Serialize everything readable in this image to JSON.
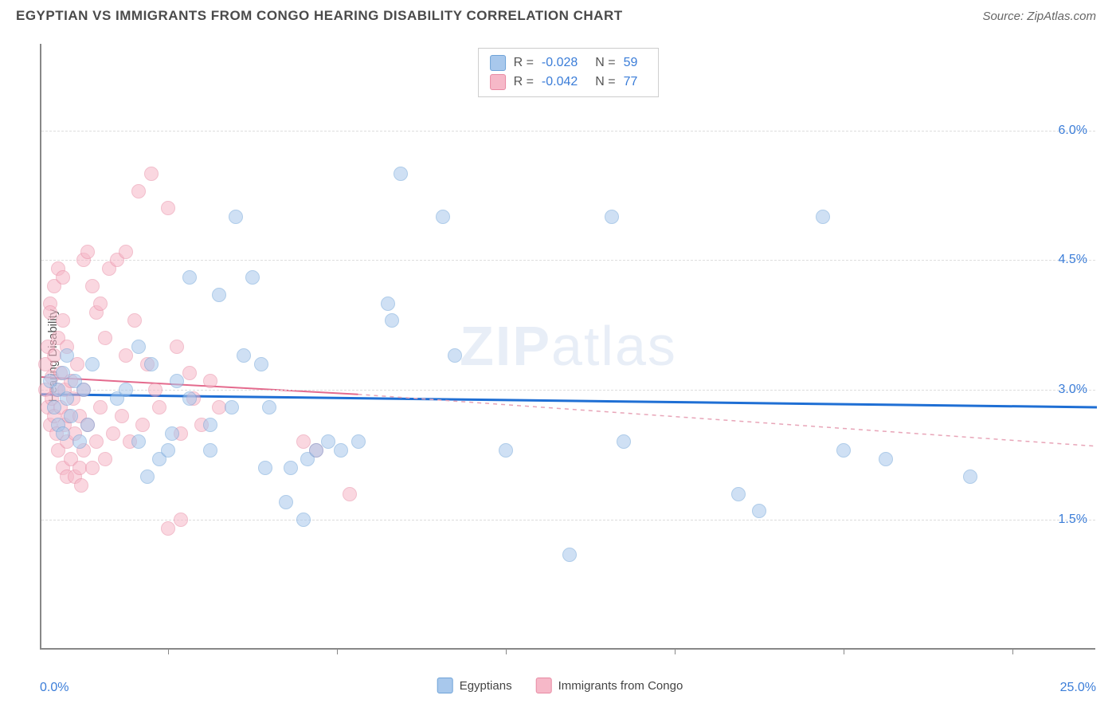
{
  "header": {
    "title": "EGYPTIAN VS IMMIGRANTS FROM CONGO HEARING DISABILITY CORRELATION CHART",
    "source": "Source: ZipAtlas.com"
  },
  "watermark": {
    "part1": "ZIP",
    "part2": "atlas"
  },
  "chart": {
    "type": "scatter",
    "y_axis_title": "Hearing Disability",
    "background_color": "#ffffff",
    "grid_color": "#dddddd",
    "axis_color": "#888888",
    "xlim": [
      0.0,
      25.0
    ],
    "ylim": [
      0.0,
      7.0
    ],
    "x_labels": {
      "min": "0.0%",
      "max": "25.0%"
    },
    "y_ticks": [
      {
        "value": 1.5,
        "label": "1.5%"
      },
      {
        "value": 3.0,
        "label": "3.0%"
      },
      {
        "value": 4.5,
        "label": "4.5%"
      },
      {
        "value": 6.0,
        "label": "6.0%"
      }
    ],
    "x_tick_positions": [
      3.0,
      7.0,
      11.0,
      15.0,
      19.0,
      23.0
    ],
    "series": [
      {
        "name": "Egyptians",
        "fill_color": "#a8c8ec",
        "stroke_color": "#6fa3d8",
        "fill_opacity": 0.55,
        "marker_radius": 9,
        "trend": {
          "color": "#1f6fd4",
          "width": 3,
          "x1": 0.0,
          "y1": 2.95,
          "x2": 25.0,
          "y2": 2.8,
          "dash": "none",
          "extrapolate_dash": false
        },
        "stats": {
          "R": "-0.028",
          "N": "59"
        },
        "points": [
          [
            0.2,
            3.1
          ],
          [
            0.3,
            2.8
          ],
          [
            0.4,
            3.0
          ],
          [
            0.4,
            2.6
          ],
          [
            0.5,
            3.2
          ],
          [
            0.5,
            2.5
          ],
          [
            0.6,
            2.9
          ],
          [
            0.6,
            3.4
          ],
          [
            0.7,
            2.7
          ],
          [
            0.8,
            3.1
          ],
          [
            0.9,
            2.4
          ],
          [
            1.0,
            3.0
          ],
          [
            1.1,
            2.6
          ],
          [
            1.2,
            3.3
          ],
          [
            1.8,
            2.9
          ],
          [
            2.0,
            3.0
          ],
          [
            2.3,
            3.5
          ],
          [
            2.3,
            2.4
          ],
          [
            2.5,
            2.0
          ],
          [
            2.6,
            3.3
          ],
          [
            2.8,
            2.2
          ],
          [
            3.0,
            2.3
          ],
          [
            3.1,
            2.5
          ],
          [
            3.2,
            3.1
          ],
          [
            3.5,
            2.9
          ],
          [
            3.5,
            4.3
          ],
          [
            4.0,
            2.3
          ],
          [
            4.0,
            2.6
          ],
          [
            4.2,
            4.1
          ],
          [
            4.5,
            2.8
          ],
          [
            4.6,
            5.0
          ],
          [
            4.8,
            3.4
          ],
          [
            5.0,
            4.3
          ],
          [
            5.2,
            3.3
          ],
          [
            5.3,
            2.1
          ],
          [
            5.4,
            2.8
          ],
          [
            5.8,
            1.7
          ],
          [
            5.9,
            2.1
          ],
          [
            6.2,
            1.5
          ],
          [
            6.3,
            2.2
          ],
          [
            6.5,
            2.3
          ],
          [
            6.8,
            2.4
          ],
          [
            7.1,
            2.3
          ],
          [
            7.5,
            2.4
          ],
          [
            8.2,
            4.0
          ],
          [
            8.3,
            3.8
          ],
          [
            8.5,
            5.5
          ],
          [
            9.5,
            5.0
          ],
          [
            9.8,
            3.4
          ],
          [
            11.0,
            2.3
          ],
          [
            12.5,
            1.1
          ],
          [
            13.5,
            5.0
          ],
          [
            13.8,
            2.4
          ],
          [
            16.5,
            1.8
          ],
          [
            17.0,
            1.6
          ],
          [
            18.5,
            5.0
          ],
          [
            19.0,
            2.3
          ],
          [
            20.0,
            2.2
          ],
          [
            22.0,
            2.0
          ]
        ]
      },
      {
        "name": "Immigrants from Congo",
        "fill_color": "#f6b8c8",
        "stroke_color": "#e88aa3",
        "fill_opacity": 0.55,
        "marker_radius": 9,
        "trend": {
          "color": "#e46a8d",
          "width": 2,
          "x1": 0.0,
          "y1": 3.15,
          "x2": 7.5,
          "y2": 2.95,
          "dash": "none",
          "extrapolate_dash": true,
          "ext_x2": 25.0,
          "ext_y2": 2.35,
          "ext_color": "#e8a5b8"
        },
        "stats": {
          "R": "-0.042",
          "N": "77"
        },
        "points": [
          [
            0.1,
            3.0
          ],
          [
            0.1,
            3.3
          ],
          [
            0.15,
            2.8
          ],
          [
            0.15,
            3.5
          ],
          [
            0.2,
            2.6
          ],
          [
            0.2,
            4.0
          ],
          [
            0.2,
            3.9
          ],
          [
            0.25,
            2.9
          ],
          [
            0.25,
            3.15
          ],
          [
            0.3,
            3.4
          ],
          [
            0.3,
            2.7
          ],
          [
            0.3,
            4.2
          ],
          [
            0.35,
            3.0
          ],
          [
            0.35,
            2.5
          ],
          [
            0.4,
            3.6
          ],
          [
            0.4,
            2.3
          ],
          [
            0.4,
            4.4
          ],
          [
            0.45,
            2.8
          ],
          [
            0.45,
            3.2
          ],
          [
            0.5,
            2.1
          ],
          [
            0.5,
            3.8
          ],
          [
            0.5,
            4.3
          ],
          [
            0.55,
            2.6
          ],
          [
            0.55,
            3.0
          ],
          [
            0.6,
            2.0
          ],
          [
            0.6,
            2.4
          ],
          [
            0.6,
            3.5
          ],
          [
            0.65,
            2.7
          ],
          [
            0.7,
            2.2
          ],
          [
            0.7,
            3.1
          ],
          [
            0.75,
            2.9
          ],
          [
            0.8,
            2.0
          ],
          [
            0.8,
            2.5
          ],
          [
            0.85,
            3.3
          ],
          [
            0.9,
            2.1
          ],
          [
            0.9,
            2.7
          ],
          [
            0.95,
            1.9
          ],
          [
            1.0,
            2.3
          ],
          [
            1.0,
            3.0
          ],
          [
            1.0,
            4.5
          ],
          [
            1.1,
            2.6
          ],
          [
            1.1,
            4.6
          ],
          [
            1.2,
            2.1
          ],
          [
            1.2,
            4.2
          ],
          [
            1.3,
            2.4
          ],
          [
            1.3,
            3.9
          ],
          [
            1.4,
            2.8
          ],
          [
            1.4,
            4.0
          ],
          [
            1.5,
            2.2
          ],
          [
            1.5,
            3.6
          ],
          [
            1.6,
            4.4
          ],
          [
            1.7,
            2.5
          ],
          [
            1.8,
            4.5
          ],
          [
            1.9,
            2.7
          ],
          [
            2.0,
            3.4
          ],
          [
            2.0,
            4.6
          ],
          [
            2.1,
            2.4
          ],
          [
            2.2,
            3.8
          ],
          [
            2.3,
            5.3
          ],
          [
            2.4,
            2.6
          ],
          [
            2.5,
            3.3
          ],
          [
            2.6,
            5.5
          ],
          [
            2.7,
            3.0
          ],
          [
            2.8,
            2.8
          ],
          [
            3.0,
            1.4
          ],
          [
            3.0,
            5.1
          ],
          [
            3.2,
            3.5
          ],
          [
            3.3,
            2.5
          ],
          [
            3.3,
            1.5
          ],
          [
            3.5,
            3.2
          ],
          [
            3.6,
            2.9
          ],
          [
            3.8,
            2.6
          ],
          [
            4.0,
            3.1
          ],
          [
            4.2,
            2.8
          ],
          [
            6.2,
            2.4
          ],
          [
            6.5,
            2.3
          ],
          [
            7.3,
            1.8
          ]
        ]
      }
    ]
  },
  "stats_legend": {
    "labels": {
      "R": "R =",
      "N": "N ="
    }
  },
  "bottom_legend": {
    "items": [
      {
        "label": "Egyptians",
        "color": "#a8c8ec",
        "border": "#6fa3d8"
      },
      {
        "label": "Immigrants from Congo",
        "color": "#f6b8c8",
        "border": "#e88aa3"
      }
    ]
  }
}
